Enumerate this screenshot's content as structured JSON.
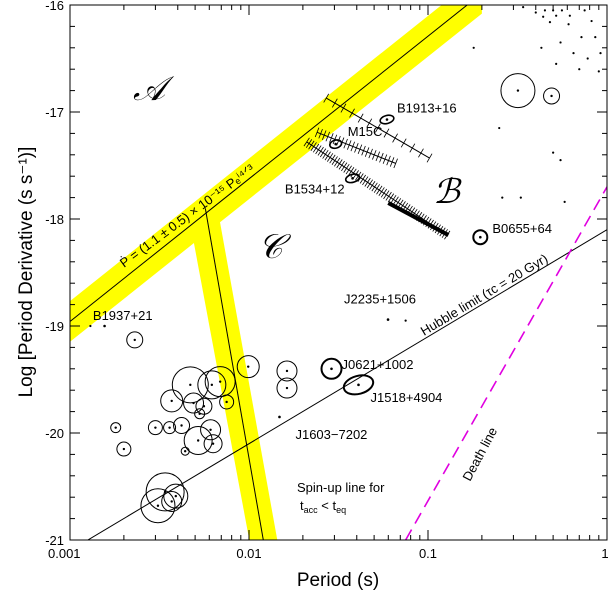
{
  "chart_data": {
    "type": "scatter",
    "xlabel": "Period (s)",
    "ylabel": "Log [Period Derivative (s s⁻¹)]",
    "x_scale": "log",
    "xlim": [
      0.001,
      1
    ],
    "ylim": [
      -21,
      -16
    ],
    "x_ticks": [
      "0.001",
      "0.01",
      "0.1",
      "1"
    ],
    "y_ticks": [
      "-21",
      "-20",
      "-19",
      "-18",
      "-17",
      "-16"
    ],
    "colors": {
      "band": "#ffff00",
      "death_line": "#e000e0",
      "points": "#000000"
    },
    "regions": [
      "𝒜",
      "ℬ",
      "𝒞"
    ],
    "lines": {
      "spin_up_label": "Ṗ = (1.1 ± 0.5) × 10⁻¹⁵ Pₑⁱ⁴ᐟ³",
      "spin_up_eq": {
        "coefficient": 1.1e-15,
        "exponent": 1.333
      },
      "hubble_label": "Hubble limit (τc = 20 Gyr)",
      "hubble_x": [
        0.001,
        1
      ],
      "hubble_y": [
        -21.1,
        -18.1
      ],
      "death_label": "Death line",
      "death_x": [
        0.075,
        1
      ],
      "death_y": [
        -21,
        -17.7
      ],
      "vertical_x": 0.0057,
      "vertical_y_top": -17.9,
      "vertical_y_bottom": -21
    },
    "annotation": [
      "Spin-up line for",
      "t",
      "acc",
      " < t",
      "eq"
    ],
    "named_pulsars": [
      {
        "name": "B1913+16",
        "period": 0.059,
        "logpdot": -17.07
      },
      {
        "name": "M15C",
        "period": 0.0305,
        "logpdot": -17.3
      },
      {
        "name": "B1534+12",
        "period": 0.0379,
        "logpdot": -17.62
      },
      {
        "name": "B0655+64",
        "period": 0.196,
        "logpdot": -18.17
      },
      {
        "name": "B1937+21",
        "period": 0.00156,
        "logpdot": -19.0
      },
      {
        "name": "J2235+1506",
        "period": 0.0598,
        "logpdot": -18.94
      },
      {
        "name": "J0621+1002",
        "period": 0.0289,
        "logpdot": -19.4
      },
      {
        "name": "J1518+4904",
        "period": 0.0409,
        "logpdot": -19.55
      },
      {
        "name": "J1603−7202",
        "period": 0.0148,
        "logpdot": -19.85
      }
    ],
    "circled_points": [
      {
        "x": 0.0023,
        "y": -19.13,
        "r": 8
      },
      {
        "x": 0.0062,
        "y": -19.55,
        "r": 14
      },
      {
        "x": 0.0047,
        "y": -19.55,
        "r": 18
      },
      {
        "x": 0.0069,
        "y": -19.52,
        "r": 15
      },
      {
        "x": 0.0099,
        "y": -19.38,
        "r": 11
      },
      {
        "x": 0.0163,
        "y": -19.42,
        "r": 10
      },
      {
        "x": 0.0163,
        "y": -19.58,
        "r": 10
      },
      {
        "x": 0.0037,
        "y": -19.7,
        "r": 11
      },
      {
        "x": 0.0049,
        "y": -19.72,
        "r": 10
      },
      {
        "x": 0.0075,
        "y": -19.71,
        "r": 7
      },
      {
        "x": 0.0056,
        "y": -19.75,
        "r": 8
      },
      {
        "x": 0.0053,
        "y": -19.82,
        "r": 5
      },
      {
        "x": 0.0018,
        "y": -19.95,
        "r": 5
      },
      {
        "x": 0.003,
        "y": -19.95,
        "r": 7
      },
      {
        "x": 0.0036,
        "y": -19.95,
        "r": 6
      },
      {
        "x": 0.0042,
        "y": -19.93,
        "r": 8
      },
      {
        "x": 0.0061,
        "y": -19.97,
        "r": 10
      },
      {
        "x": 0.0052,
        "y": -20.07,
        "r": 14
      },
      {
        "x": 0.0063,
        "y": -20.1,
        "r": 9
      },
      {
        "x": 0.002,
        "y": -20.15,
        "r": 7
      },
      {
        "x": 0.0044,
        "y": -20.17,
        "r": 4
      },
      {
        "x": 0.0034,
        "y": -20.55,
        "r": 19
      },
      {
        "x": 0.0039,
        "y": -20.59,
        "r": 12
      },
      {
        "x": 0.0031,
        "y": -20.68,
        "r": 17
      },
      {
        "x": 0.0037,
        "y": -20.64,
        "r": 10
      },
      {
        "x": 0.318,
        "y": -16.8,
        "r": 17
      },
      {
        "x": 0.49,
        "y": -16.85,
        "r": 8
      }
    ],
    "small_points": [
      {
        "x": 0.34,
        "y": -16.02
      },
      {
        "x": 0.4,
        "y": -16.07
      },
      {
        "x": 0.45,
        "y": -16.05
      },
      {
        "x": 0.5,
        "y": -16.05
      },
      {
        "x": 0.56,
        "y": -16.05
      },
      {
        "x": 0.44,
        "y": -16.11
      },
      {
        "x": 0.52,
        "y": -16.1
      },
      {
        "x": 0.62,
        "y": -16.1
      },
      {
        "x": 0.75,
        "y": -16.05
      },
      {
        "x": 0.48,
        "y": -16.16
      },
      {
        "x": 0.61,
        "y": -16.18
      },
      {
        "x": 0.82,
        "y": -16.15
      },
      {
        "x": 0.72,
        "y": -16.3
      },
      {
        "x": 0.55,
        "y": -16.35
      },
      {
        "x": 0.86,
        "y": -16.3
      },
      {
        "x": 0.65,
        "y": -16.45
      },
      {
        "x": 0.78,
        "y": -16.5
      },
      {
        "x": 0.92,
        "y": -16.45
      },
      {
        "x": 0.7,
        "y": -16.6
      },
      {
        "x": 0.9,
        "y": -16.62
      },
      {
        "x": 0.18,
        "y": -16.4
      },
      {
        "x": 0.43,
        "y": -16.4
      },
      {
        "x": 0.52,
        "y": -16.55
      },
      {
        "x": 0.25,
        "y": -17.15
      },
      {
        "x": 0.5,
        "y": -17.38
      },
      {
        "x": 0.55,
        "y": -17.45
      },
      {
        "x": 0.26,
        "y": -17.8
      },
      {
        "x": 0.33,
        "y": -17.8
      },
      {
        "x": 0.58,
        "y": -17.84
      },
      {
        "x": 0.075,
        "y": -18.95
      },
      {
        "x": 0.0013,
        "y": -19.0
      }
    ]
  }
}
